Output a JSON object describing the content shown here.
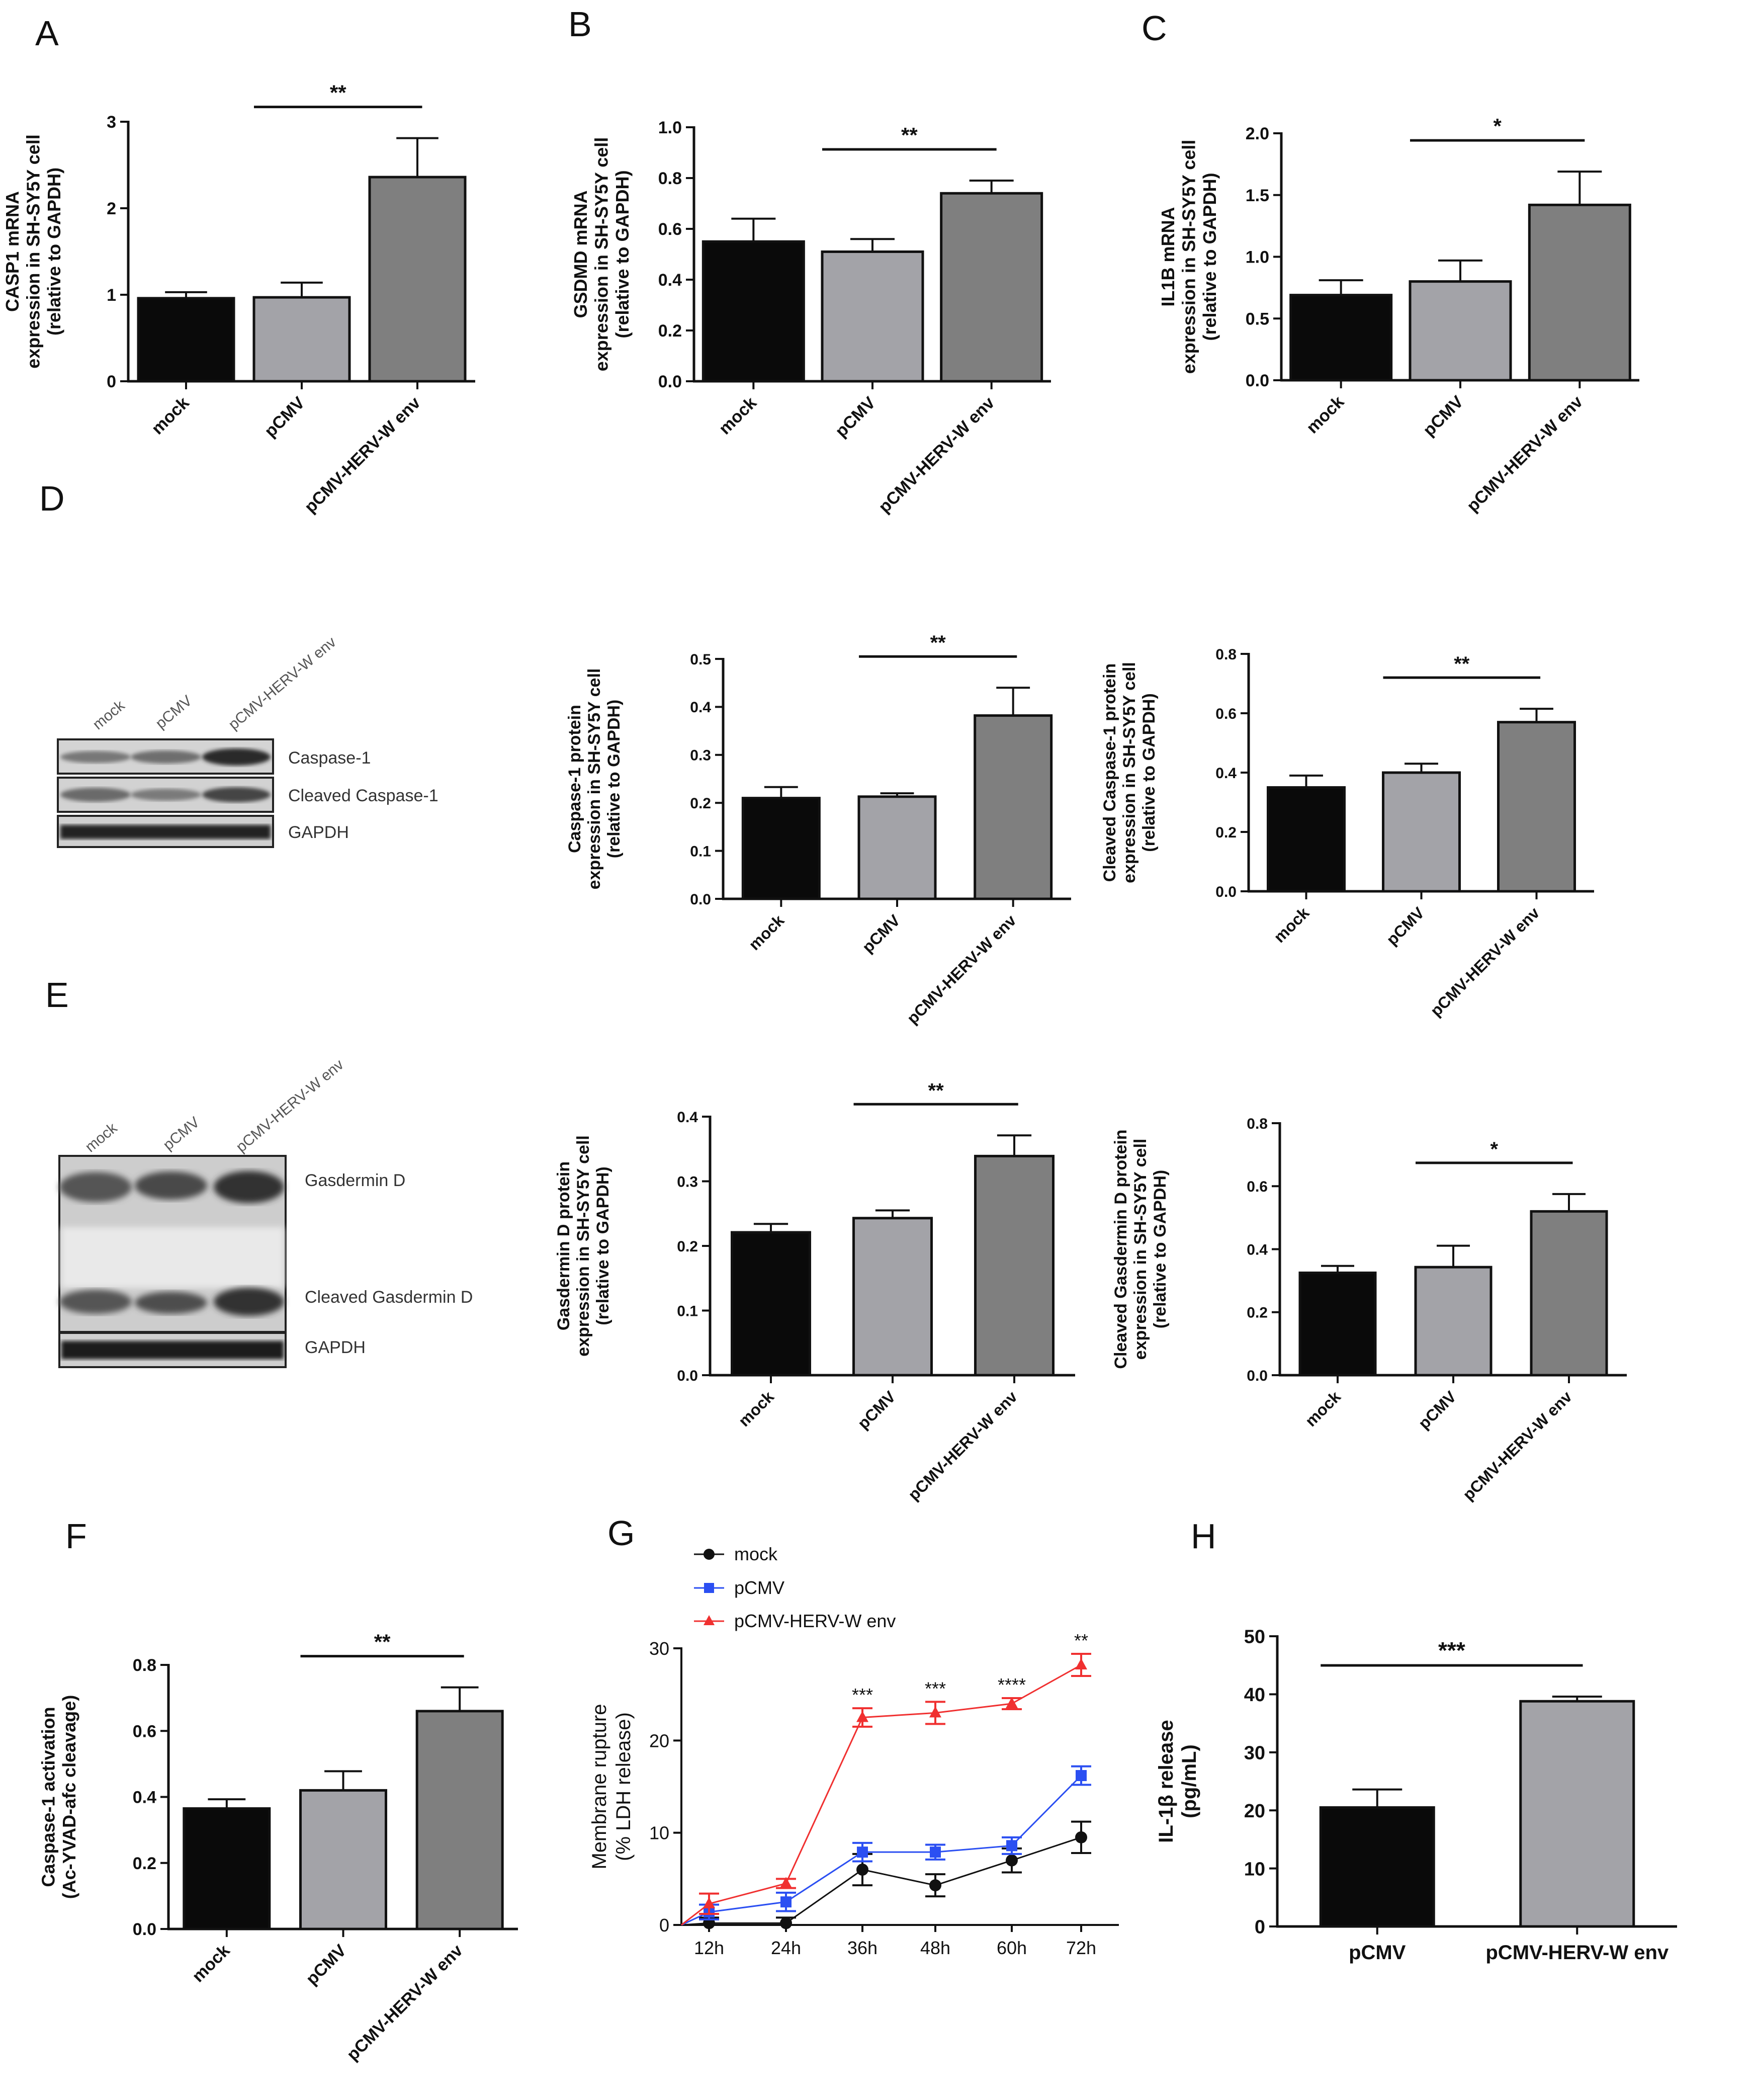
{
  "panel_letters": {
    "A": "A",
    "B": "B",
    "C": "C",
    "D": "D",
    "E": "E",
    "F": "F",
    "G": "G",
    "H": "H"
  },
  "colors": {
    "mock": "#0a0a0a",
    "pCMV": "#a3a3a8",
    "env": "#7f7f7f",
    "line_mock": "#111111",
    "line_pcmv": "#2b4ff2",
    "line_env": "#f03030"
  },
  "blots": {
    "D": {
      "lanes": [
        "mock",
        "pCMV",
        "pCMV-HERV-W env"
      ],
      "bands": [
        "Caspase-1",
        "Cleaved Caspase-1",
        "GAPDH"
      ]
    },
    "E": {
      "lanes": [
        "mock",
        "pCMV",
        "pCMV-HERV-W env"
      ],
      "bands": [
        "Gasdermin D",
        "Cleaved Gasdermin D",
        "GAPDH"
      ]
    }
  },
  "chart_data": [
    {
      "id": "A",
      "type": "bar",
      "categories": [
        "mock",
        "pCMV",
        "pCMV-HERV-W env"
      ],
      "values": [
        0.96,
        0.97,
        2.36
      ],
      "errors": [
        0.07,
        0.17,
        0.45
      ],
      "ylim": [
        0,
        3
      ],
      "yticks": [
        "0",
        "1",
        "2",
        "3"
      ],
      "ylabel": [
        "CASP1 mRNA",
        "expression in SH-SY5Y cell",
        "(relative to GAPDH)"
      ],
      "significance": [
        {
          "from": 1,
          "to": 2,
          "label": "**"
        }
      ]
    },
    {
      "id": "B",
      "type": "bar",
      "categories": [
        "mock",
        "pCMV",
        "pCMV-HERV-W env"
      ],
      "values": [
        0.55,
        0.51,
        0.74
      ],
      "errors": [
        0.09,
        0.05,
        0.05
      ],
      "ylim": [
        0,
        1.0
      ],
      "yticks": [
        "0.0",
        "0.2",
        "0.4",
        "0.6",
        "0.8",
        "1.0"
      ],
      "ylabel": [
        "GSDMD mRNA",
        "expression in SH-SY5Y cell",
        "(relative to GAPDH)"
      ],
      "significance": [
        {
          "from": 1,
          "to": 2,
          "label": "**"
        }
      ]
    },
    {
      "id": "C",
      "type": "bar",
      "categories": [
        "mock",
        "pCMV",
        "pCMV-HERV-W env"
      ],
      "values": [
        0.69,
        0.8,
        1.42
      ],
      "errors": [
        0.12,
        0.17,
        0.27
      ],
      "ylim": [
        0,
        2.0
      ],
      "yticks": [
        "0.0",
        "0.5",
        "1.0",
        "1.5",
        "2.0"
      ],
      "ylabel": [
        "IL1B mRNA",
        "expression in SH-SY5Y cell",
        "(relative to GAPDH)"
      ],
      "significance": [
        {
          "from": 1,
          "to": 2,
          "label": "*"
        }
      ]
    },
    {
      "id": "D1",
      "type": "bar",
      "categories": [
        "mock",
        "pCMV",
        "pCMV-HERV-W env"
      ],
      "values": [
        0.21,
        0.213,
        0.382
      ],
      "errors": [
        0.023,
        0.007,
        0.058
      ],
      "ylim": [
        0,
        0.5
      ],
      "yticks": [
        "0.0",
        "0.1",
        "0.2",
        "0.3",
        "0.4",
        "0.5"
      ],
      "ylabel": [
        "Caspase-1 protein",
        "expression in SH-SY5Y cell",
        "(relative to GAPDH)"
      ],
      "significance": [
        {
          "from": 1,
          "to": 2,
          "label": "**"
        }
      ]
    },
    {
      "id": "D2",
      "type": "bar",
      "categories": [
        "mock",
        "pCMV",
        "pCMV-HERV-W env"
      ],
      "values": [
        0.35,
        0.4,
        0.57
      ],
      "errors": [
        0.04,
        0.03,
        0.045
      ],
      "ylim": [
        0,
        0.8
      ],
      "yticks": [
        "0.0",
        "0.2",
        "0.4",
        "0.6",
        "0.8"
      ],
      "ylabel": [
        "Cleaved Caspase-1 protein",
        "expression in SH-SY5Y cell",
        "(relative to GAPDH)"
      ],
      "significance": [
        {
          "from": 1,
          "to": 2,
          "label": "**"
        }
      ]
    },
    {
      "id": "E1",
      "type": "bar",
      "categories": [
        "mock",
        "pCMV",
        "pCMV-HERV-W env"
      ],
      "values": [
        0.221,
        0.243,
        0.339
      ],
      "errors": [
        0.013,
        0.012,
        0.032
      ],
      "ylim": [
        0,
        0.4
      ],
      "yticks": [
        "0.0",
        "0.1",
        "0.2",
        "0.3",
        "0.4"
      ],
      "ylabel": [
        "Gasdermin D protein",
        "expression in SH-SY5Y cell",
        "(relative to GAPDH)"
      ],
      "significance": [
        {
          "from": 1,
          "to": 2,
          "label": "**"
        }
      ]
    },
    {
      "id": "E2",
      "type": "bar",
      "categories": [
        "mock",
        "pCMV",
        "pCMV-HERV-W env"
      ],
      "values": [
        0.325,
        0.343,
        0.52
      ],
      "errors": [
        0.022,
        0.068,
        0.055
      ],
      "ylim": [
        0,
        0.8
      ],
      "yticks": [
        "0.0",
        "0.2",
        "0.4",
        "0.6",
        "0.8"
      ],
      "ylabel": [
        "Cleaved Gasdermin D protein",
        "expression in SH-SY5Y cell",
        "(relative to GAPDH)"
      ],
      "significance": [
        {
          "from": 1,
          "to": 2,
          "label": "*"
        }
      ]
    },
    {
      "id": "F",
      "type": "bar",
      "categories": [
        "mock",
        "pCMV",
        "pCMV-HERV-W env"
      ],
      "values": [
        0.365,
        0.42,
        0.66
      ],
      "errors": [
        0.028,
        0.058,
        0.072
      ],
      "ylim": [
        0,
        0.8
      ],
      "yticks": [
        "0.0",
        "0.2",
        "0.4",
        "0.6",
        "0.8"
      ],
      "ylabel": [
        "Caspase-1 activation",
        "(Ac-YVAD-afc cleavage)"
      ],
      "significance": [
        {
          "from": 1,
          "to": 2,
          "label": "**"
        }
      ]
    },
    {
      "id": "G",
      "type": "line",
      "x": [
        "12h",
        "24h",
        "36h",
        "48h",
        "60h",
        "72h"
      ],
      "ylim": [
        0,
        30
      ],
      "yticks": [
        "0",
        "10",
        "20",
        "30"
      ],
      "ylabel": [
        "Membrane rupture",
        "(% LDH release)"
      ],
      "series": [
        {
          "name": "mock",
          "values": [
            0.2,
            0.2,
            6.0,
            4.3,
            7.0,
            9.5
          ],
          "errors": [
            0.6,
            0.6,
            1.7,
            1.2,
            1.3,
            1.7
          ]
        },
        {
          "name": "pCMV",
          "values": [
            1.4,
            2.5,
            7.9,
            7.9,
            8.6,
            16.2
          ],
          "errors": [
            0.8,
            1.0,
            1.0,
            0.8,
            0.9,
            1.0
          ]
        },
        {
          "name": "pCMV-HERV-W env",
          "values": [
            2.3,
            4.5,
            22.5,
            23.0,
            24.0,
            28.2
          ],
          "errors": [
            1.1,
            0.5,
            1.0,
            1.2,
            0.6,
            1.2
          ]
        }
      ],
      "annotations": [
        "",
        "",
        "***",
        "***",
        "****",
        "**"
      ],
      "legend": [
        "mock",
        "pCMV",
        "pCMV-HERV-W env"
      ]
    },
    {
      "id": "H",
      "type": "bar",
      "categories": [
        "pCMV",
        "pCMV-HERV-W env"
      ],
      "values": [
        20.5,
        38.8
      ],
      "errors": [
        3.1,
        0.8
      ],
      "ylim": [
        0,
        50
      ],
      "yticks": [
        "0",
        "10",
        "20",
        "30",
        "40",
        "50"
      ],
      "ylabel": [
        "IL-1β release",
        "(pg/mL)"
      ],
      "significance": [
        {
          "from": 0,
          "to": 1,
          "label": "***"
        }
      ]
    }
  ]
}
